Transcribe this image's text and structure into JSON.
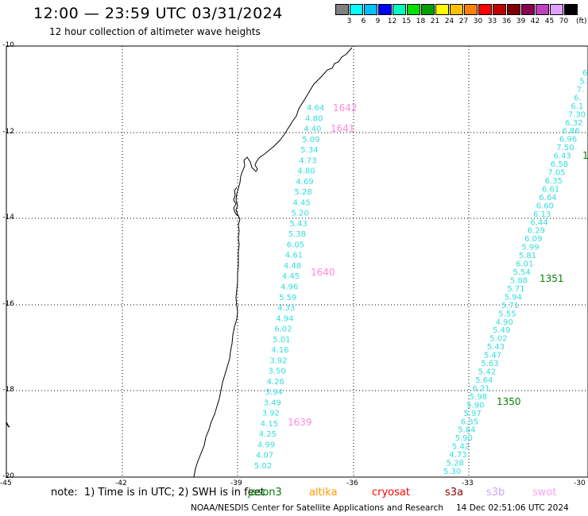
{
  "header": {
    "title": "12:00 — 23:59 UTC 03/31/2024",
    "subtitle": "12 hour collection of altimeter wave heights"
  },
  "legend": {
    "colors": [
      "#808080",
      "#00ffff",
      "#00bfff",
      "#0000ff",
      "#00ffbf",
      "#00e000",
      "#00a000",
      "#ffff00",
      "#ffc000",
      "#ff8000",
      "#ff0000",
      "#c00000",
      "#800000",
      "#8b0050",
      "#bf40bf",
      "#e0a0ff",
      "#000000"
    ],
    "labels": [
      "3",
      "6",
      "9",
      "12",
      "15",
      "18",
      "21",
      "24",
      "27",
      "30",
      "33",
      "36",
      "39",
      "42",
      "45",
      "70"
    ],
    "unit": "(ft)"
  },
  "axes": {
    "lat_ticks": [
      "-10",
      "-12",
      "-14",
      "-16",
      "-18",
      "-20"
    ],
    "lon_ticks": [
      "-45",
      "-42",
      "-39",
      "-36",
      "-33",
      "-30"
    ]
  },
  "track_west": {
    "color": "#33dddd",
    "values": [
      "4.64",
      "4.80",
      "4.40",
      "5.09",
      "5.34",
      "4.73",
      "4.80",
      "4.69",
      "5.28",
      "4.45",
      "5.20",
      "5.43",
      "5.38",
      "6.05",
      "4.61",
      "4.48",
      "4.45",
      "4.96",
      "5.59",
      "4.33",
      "4.94",
      "6.02",
      "5.01",
      "4.16",
      "3.92",
      "3.50",
      "4.26",
      "3.94",
      "3.49",
      "3.92",
      "4.15",
      "4.25",
      "4.99",
      "4.07",
      "5.02"
    ]
  },
  "track_east": {
    "color": "#33dddd",
    "values": [
      "6.",
      "5.",
      "7.",
      "6.",
      "6.1",
      "7.30",
      "6.32",
      "6.86",
      "6.96",
      "7.50",
      "6.43",
      "6.58",
      "7.05",
      "6.35",
      "6.61",
      "6.64",
      "6.60",
      "6.13",
      "6.44",
      "6.29",
      "6.09",
      "5.99",
      "5.81",
      "6.01",
      "5.54",
      "5.88",
      "5.71",
      "5.94",
      "5.71",
      "5.55",
      "4.90",
      "5.49",
      "5.02",
      "5.43",
      "5.47",
      "5.63",
      "5.42",
      "5.64",
      "6.21",
      "5.98",
      "5.90",
      "5.97",
      "6.35",
      "5.84",
      "5.90",
      "5.42",
      "4.73",
      "5.28",
      "5.30"
    ]
  },
  "time_labels_west": [
    "1642",
    "1641",
    "1640",
    "1639"
  ],
  "time_labels_east": [
    "1351",
    "1350",
    "1"
  ],
  "note": "note:  1) Time is in UTC; 2) SWH is in feet",
  "satellites": {
    "jason3": {
      "label": "jason3",
      "color": "#008000"
    },
    "altika": {
      "label": "altika",
      "color": "#ff9900"
    },
    "cryosat": {
      "label": "cryosat",
      "color": "#ff0000"
    },
    "s3a": {
      "label": "s3a",
      "color": "#8b0000"
    },
    "s3b": {
      "label": "s3b",
      "color": "#c8a8ff"
    },
    "swot": {
      "label": "swot",
      "color": "#ffa0f0"
    }
  },
  "footer": {
    "credit": "NOAA/NESDIS Center for Satellite Applications and Research",
    "generated": "14 Dec 02:51:06 UTC 2024"
  }
}
